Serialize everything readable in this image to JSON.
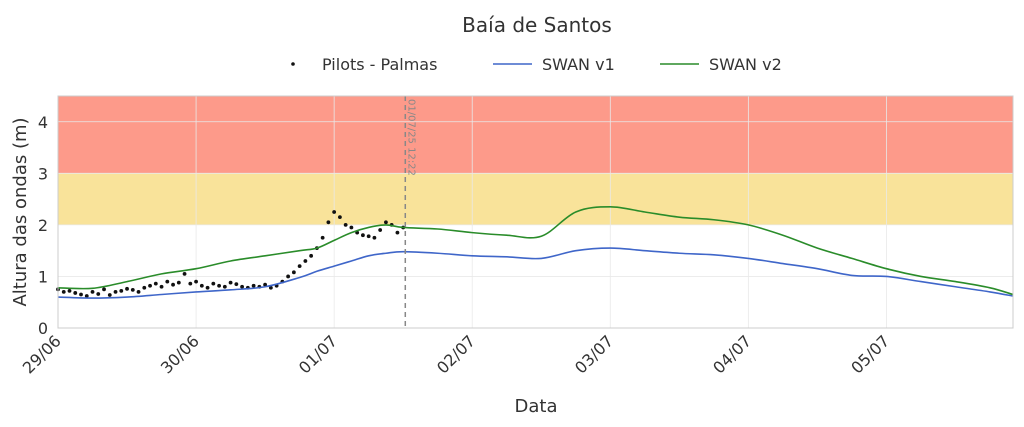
{
  "chart_data": {
    "type": "line",
    "title": "Baía de Santos",
    "xlabel": "Data",
    "ylabel": "Altura das ondas (m)",
    "x_unit": "days",
    "xlim": [
      "2025-06-29 00:00",
      "2025-07-05 22:00"
    ],
    "ylim": [
      0,
      4.5
    ],
    "x_ticks": [
      {
        "t": "2025-06-29 00:00",
        "label": "29/06"
      },
      {
        "t": "2025-06-30 00:00",
        "label": "30/06"
      },
      {
        "t": "2025-07-01 00:00",
        "label": "01/07"
      },
      {
        "t": "2025-07-02 00:00",
        "label": "02/07"
      },
      {
        "t": "2025-07-03 00:00",
        "label": "03/07"
      },
      {
        "t": "2025-07-04 00:00",
        "label": "04/07"
      },
      {
        "t": "2025-07-05 00:00",
        "label": "05/07"
      }
    ],
    "y_ticks": [
      0,
      1,
      2,
      3,
      4
    ],
    "grid": true,
    "legend_position": "top-center",
    "bands": [
      {
        "from": 3,
        "to": 4.5,
        "color": "#fd9a8a"
      },
      {
        "from": 2,
        "to": 3,
        "color": "#f9e39a"
      }
    ],
    "now_line": {
      "t": "2025-07-01 12:22",
      "label": "01/07/25 12:22",
      "color": "#888888"
    },
    "series": [
      {
        "name": "Pilots - Palmas",
        "kind": "scatter",
        "color": "#111111",
        "points": [
          [
            "2025-06-29 00:00",
            0.75
          ],
          [
            "2025-06-29 01:00",
            0.7
          ],
          [
            "2025-06-29 02:00",
            0.72
          ],
          [
            "2025-06-29 03:00",
            0.68
          ],
          [
            "2025-06-29 04:00",
            0.65
          ],
          [
            "2025-06-29 05:00",
            0.62
          ],
          [
            "2025-06-29 06:00",
            0.7
          ],
          [
            "2025-06-29 07:00",
            0.66
          ],
          [
            "2025-06-29 08:00",
            0.75
          ],
          [
            "2025-06-29 09:00",
            0.64
          ],
          [
            "2025-06-29 10:00",
            0.7
          ],
          [
            "2025-06-29 11:00",
            0.72
          ],
          [
            "2025-06-29 12:00",
            0.76
          ],
          [
            "2025-06-29 13:00",
            0.74
          ],
          [
            "2025-06-29 14:00",
            0.7
          ],
          [
            "2025-06-29 15:00",
            0.78
          ],
          [
            "2025-06-29 16:00",
            0.82
          ],
          [
            "2025-06-29 17:00",
            0.86
          ],
          [
            "2025-06-29 18:00",
            0.8
          ],
          [
            "2025-06-29 19:00",
            0.9
          ],
          [
            "2025-06-29 20:00",
            0.84
          ],
          [
            "2025-06-29 21:00",
            0.88
          ],
          [
            "2025-06-29 22:00",
            1.05
          ],
          [
            "2025-06-29 23:00",
            0.86
          ],
          [
            "2025-06-30 00:00",
            0.9
          ],
          [
            "2025-06-30 01:00",
            0.82
          ],
          [
            "2025-06-30 02:00",
            0.78
          ],
          [
            "2025-06-30 03:00",
            0.86
          ],
          [
            "2025-06-30 04:00",
            0.82
          ],
          [
            "2025-06-30 05:00",
            0.8
          ],
          [
            "2025-06-30 06:00",
            0.88
          ],
          [
            "2025-06-30 07:00",
            0.85
          ],
          [
            "2025-06-30 08:00",
            0.8
          ],
          [
            "2025-06-30 09:00",
            0.78
          ],
          [
            "2025-06-30 10:00",
            0.82
          ],
          [
            "2025-06-30 11:00",
            0.8
          ],
          [
            "2025-06-30 12:00",
            0.84
          ],
          [
            "2025-06-30 13:00",
            0.78
          ],
          [
            "2025-06-30 14:00",
            0.82
          ],
          [
            "2025-06-30 15:00",
            0.9
          ],
          [
            "2025-06-30 16:00",
            1.0
          ],
          [
            "2025-06-30 17:00",
            1.08
          ],
          [
            "2025-06-30 18:00",
            1.2
          ],
          [
            "2025-06-30 19:00",
            1.3
          ],
          [
            "2025-06-30 20:00",
            1.4
          ],
          [
            "2025-06-30 21:00",
            1.55
          ],
          [
            "2025-06-30 22:00",
            1.75
          ],
          [
            "2025-06-30 23:00",
            2.05
          ],
          [
            "2025-07-01 00:00",
            2.25
          ],
          [
            "2025-07-01 01:00",
            2.15
          ],
          [
            "2025-07-01 02:00",
            2.0
          ],
          [
            "2025-07-01 03:00",
            1.95
          ],
          [
            "2025-07-01 04:00",
            1.85
          ],
          [
            "2025-07-01 05:00",
            1.8
          ],
          [
            "2025-07-01 06:00",
            1.78
          ],
          [
            "2025-07-01 07:00",
            1.75
          ],
          [
            "2025-07-01 08:00",
            1.9
          ],
          [
            "2025-07-01 09:00",
            2.05
          ],
          [
            "2025-07-01 10:00",
            2.0
          ],
          [
            "2025-07-01 11:00",
            1.85
          ],
          [
            "2025-07-01 12:00",
            1.95
          ]
        ]
      },
      {
        "name": "SWAN v1",
        "kind": "line",
        "color": "#3f66c9",
        "points": [
          [
            "2025-06-29 00:00",
            0.6
          ],
          [
            "2025-06-29 06:00",
            0.58
          ],
          [
            "2025-06-29 12:00",
            0.6
          ],
          [
            "2025-06-29 18:00",
            0.65
          ],
          [
            "2025-06-30 00:00",
            0.7
          ],
          [
            "2025-06-30 06:00",
            0.74
          ],
          [
            "2025-06-30 12:00",
            0.8
          ],
          [
            "2025-06-30 18:00",
            0.98
          ],
          [
            "2025-06-30 21:00",
            1.1
          ],
          [
            "2025-07-01 00:00",
            1.2
          ],
          [
            "2025-07-01 03:00",
            1.3
          ],
          [
            "2025-07-01 06:00",
            1.4
          ],
          [
            "2025-07-01 09:00",
            1.45
          ],
          [
            "2025-07-01 12:00",
            1.48
          ],
          [
            "2025-07-01 18:00",
            1.45
          ],
          [
            "2025-07-02 00:00",
            1.4
          ],
          [
            "2025-07-02 06:00",
            1.38
          ],
          [
            "2025-07-02 12:00",
            1.35
          ],
          [
            "2025-07-02 18:00",
            1.5
          ],
          [
            "2025-07-03 00:00",
            1.55
          ],
          [
            "2025-07-03 06:00",
            1.5
          ],
          [
            "2025-07-03 12:00",
            1.45
          ],
          [
            "2025-07-03 18:00",
            1.42
          ],
          [
            "2025-07-04 00:00",
            1.35
          ],
          [
            "2025-07-04 06:00",
            1.25
          ],
          [
            "2025-07-04 12:00",
            1.15
          ],
          [
            "2025-07-04 18:00",
            1.02
          ],
          [
            "2025-07-05 00:00",
            1.0
          ],
          [
            "2025-07-05 06:00",
            0.9
          ],
          [
            "2025-07-05 12:00",
            0.8
          ],
          [
            "2025-07-05 18:00",
            0.7
          ],
          [
            "2025-07-05 22:00",
            0.62
          ]
        ]
      },
      {
        "name": "SWAN v2",
        "kind": "line",
        "color": "#2a8c2a",
        "points": [
          [
            "2025-06-29 00:00",
            0.78
          ],
          [
            "2025-06-29 06:00",
            0.77
          ],
          [
            "2025-06-29 12:00",
            0.9
          ],
          [
            "2025-06-29 18:00",
            1.05
          ],
          [
            "2025-06-30 00:00",
            1.15
          ],
          [
            "2025-06-30 06:00",
            1.3
          ],
          [
            "2025-06-30 12:00",
            1.4
          ],
          [
            "2025-06-30 18:00",
            1.5
          ],
          [
            "2025-06-30 21:00",
            1.55
          ],
          [
            "2025-07-01 00:00",
            1.7
          ],
          [
            "2025-07-01 03:00",
            1.85
          ],
          [
            "2025-07-01 06:00",
            1.95
          ],
          [
            "2025-07-01 09:00",
            2.0
          ],
          [
            "2025-07-01 12:00",
            1.95
          ],
          [
            "2025-07-01 18:00",
            1.92
          ],
          [
            "2025-07-02 00:00",
            1.85
          ],
          [
            "2025-07-02 06:00",
            1.8
          ],
          [
            "2025-07-02 12:00",
            1.78
          ],
          [
            "2025-07-02 18:00",
            2.25
          ],
          [
            "2025-07-03 00:00",
            2.35
          ],
          [
            "2025-07-03 06:00",
            2.25
          ],
          [
            "2025-07-03 12:00",
            2.15
          ],
          [
            "2025-07-03 18:00",
            2.1
          ],
          [
            "2025-07-04 00:00",
            2.0
          ],
          [
            "2025-07-04 06:00",
            1.8
          ],
          [
            "2025-07-04 12:00",
            1.55
          ],
          [
            "2025-07-04 18:00",
            1.35
          ],
          [
            "2025-07-05 00:00",
            1.15
          ],
          [
            "2025-07-05 06:00",
            1.0
          ],
          [
            "2025-07-05 12:00",
            0.9
          ],
          [
            "2025-07-05 18:00",
            0.78
          ],
          [
            "2025-07-05 22:00",
            0.65
          ]
        ]
      }
    ]
  }
}
